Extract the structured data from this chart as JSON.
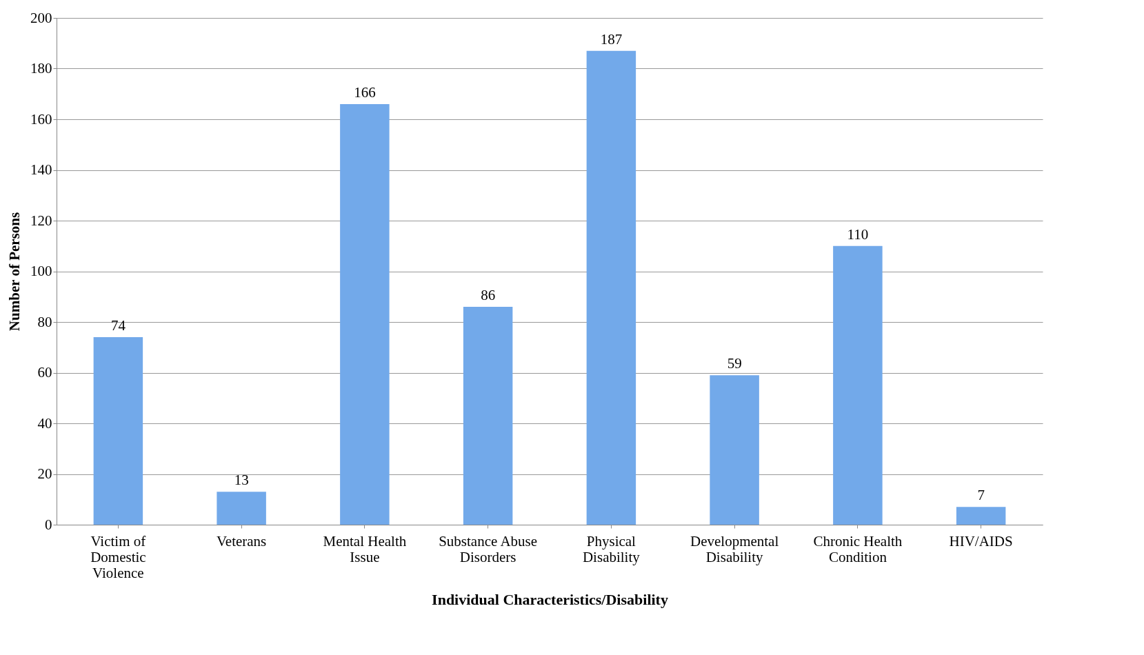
{
  "chart_data": {
    "type": "bar",
    "categories": [
      "Victim of Domestic Violence",
      "Veterans",
      "Mental Health Issue",
      "Substance Abuse Disorders",
      "Physical Disability",
      "Developmental Disability",
      "Chronic Health Condition",
      "HIV/AIDS"
    ],
    "values": [
      74,
      13,
      166,
      86,
      187,
      59,
      110,
      7
    ],
    "color": "#72a9ea",
    "xlabel": "Individual Characteristics/Disability",
    "ylabel": "Number of Persons",
    "ylim": [
      0,
      200
    ],
    "yticks": [
      0,
      20,
      40,
      60,
      80,
      100,
      120,
      140,
      160,
      180,
      200
    ],
    "grid": "y",
    "data_labels": true
  }
}
